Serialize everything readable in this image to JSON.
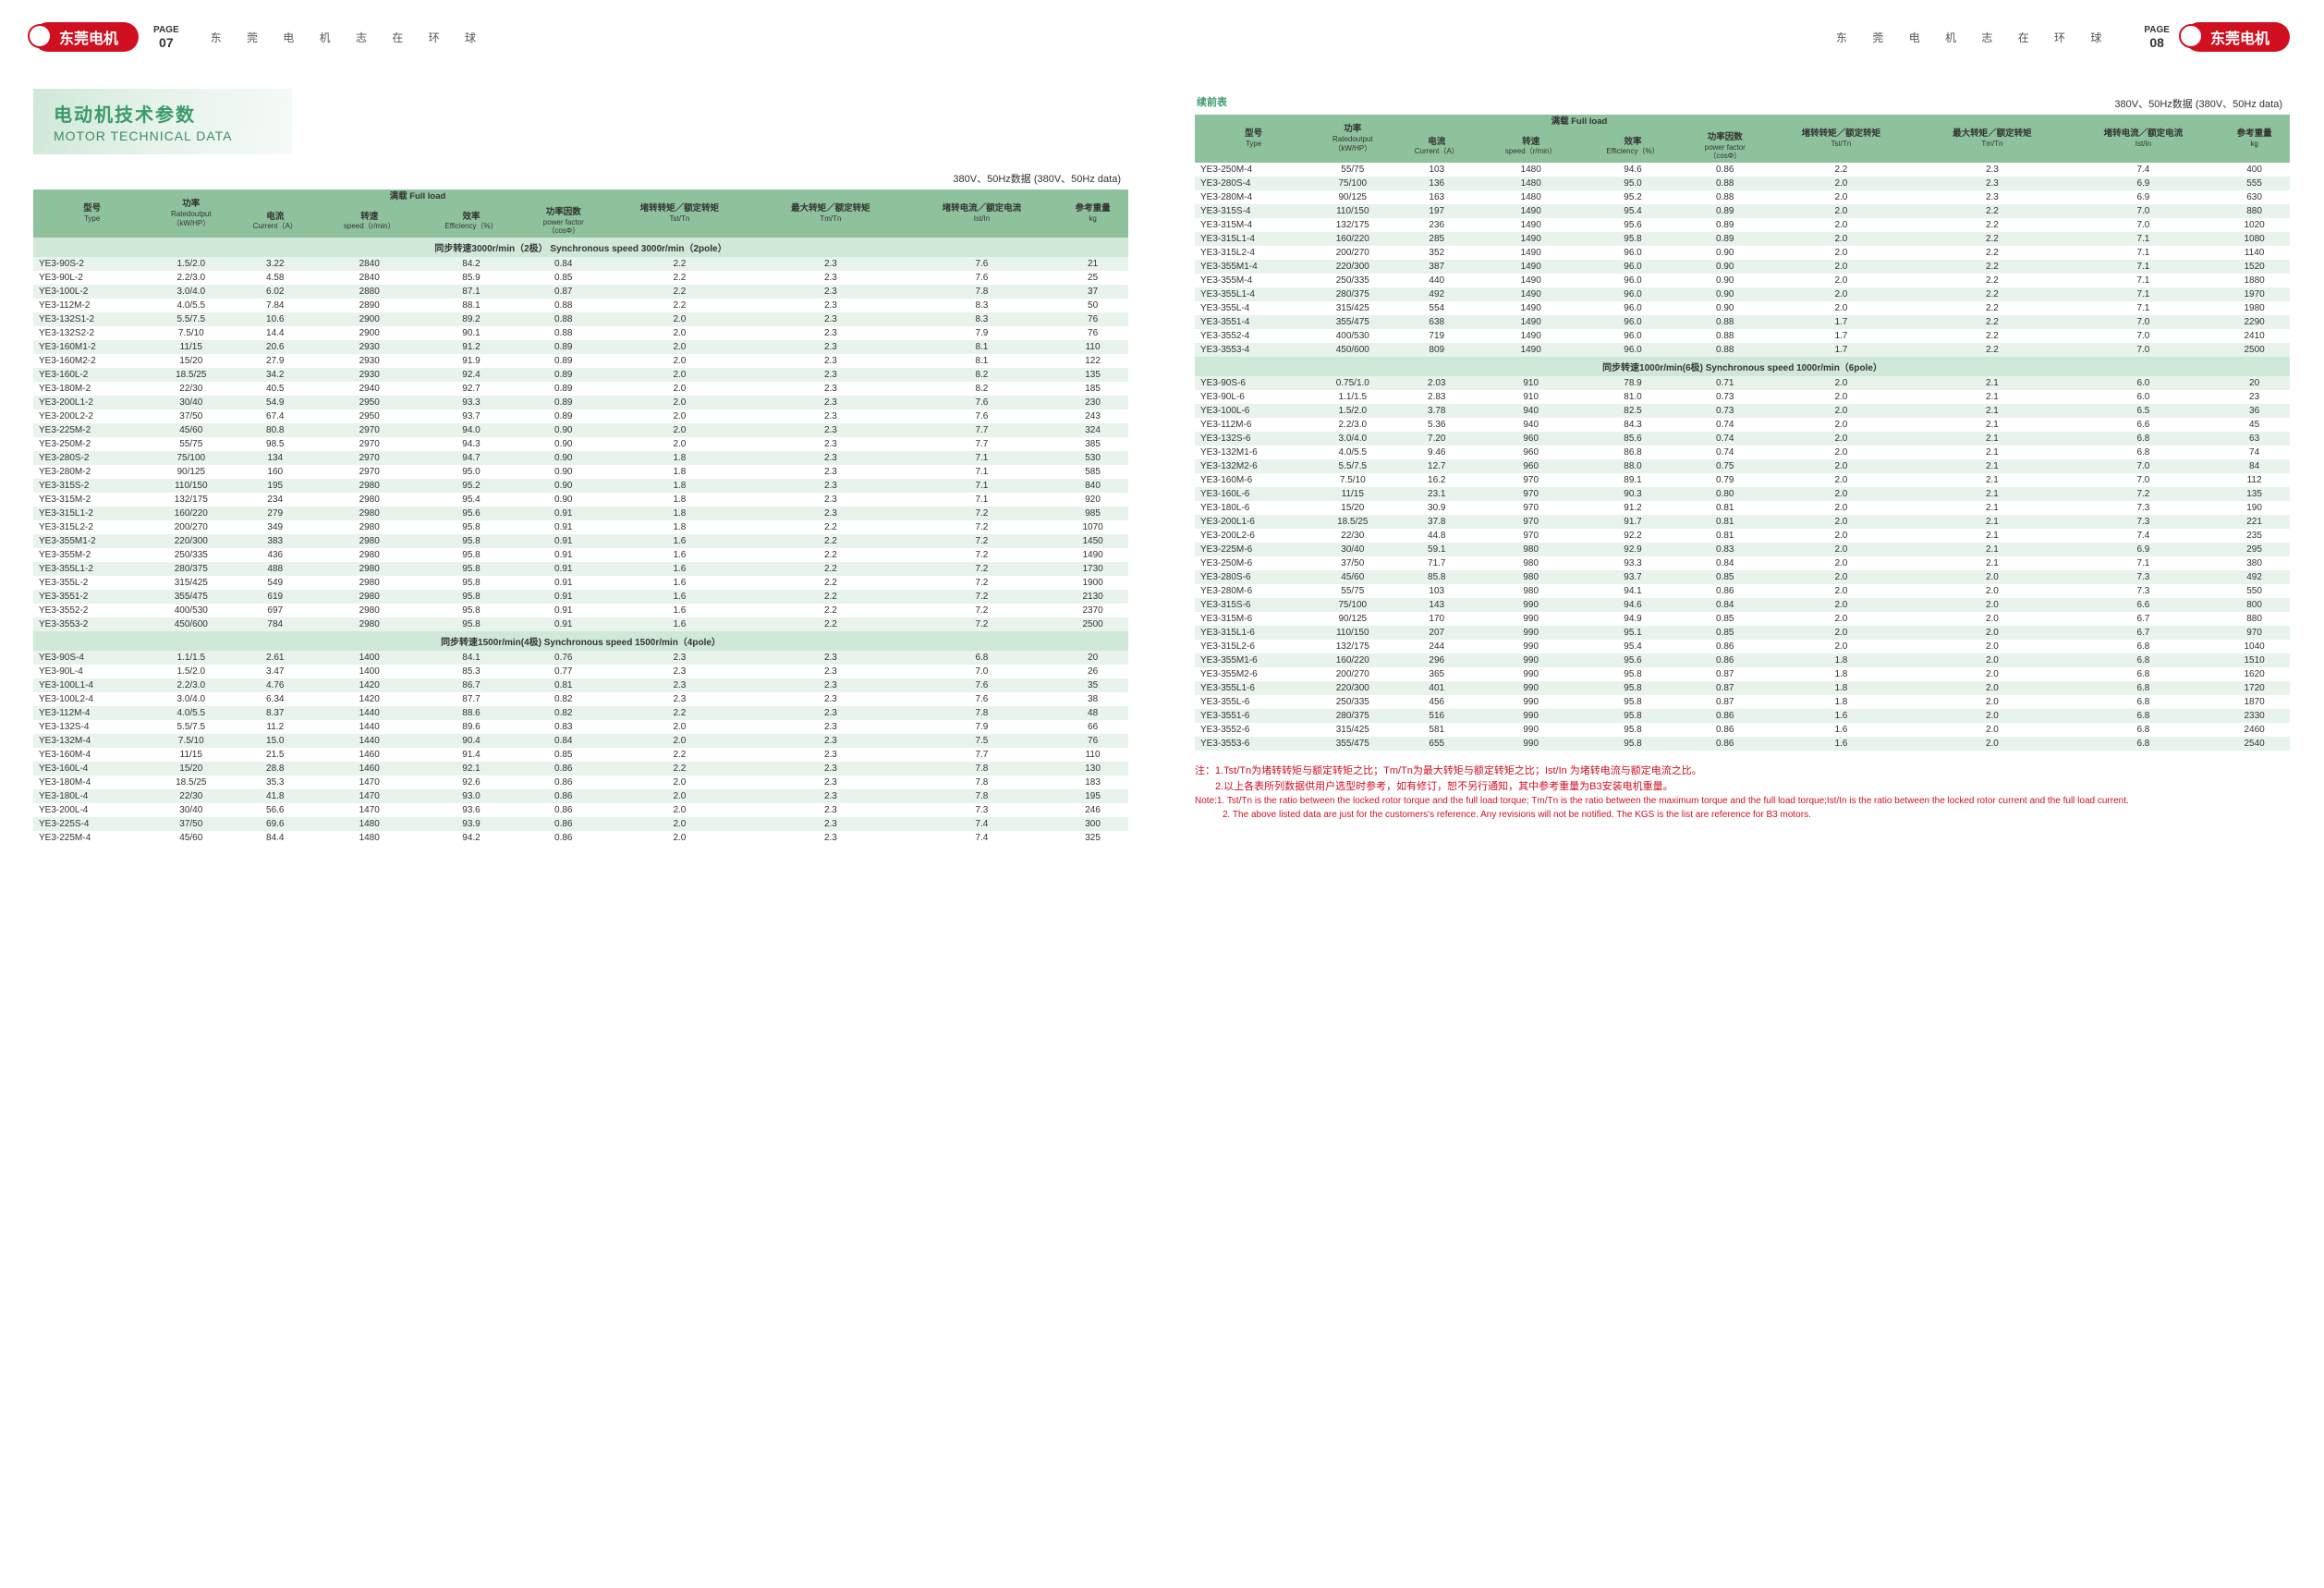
{
  "brand": "东莞电机",
  "page_left_label": "PAGE",
  "page_left_num": "07",
  "page_right_label": "PAGE",
  "page_right_num": "08",
  "slogan": "东 莞 电 机   志 在 环 球",
  "title_cn": "电动机技术参数",
  "title_en": "MOTOR TECHNICAL DATA",
  "data_note": "380V、50Hz数据 (380V、50Hz data)",
  "cont_label": "续前表",
  "headers": {
    "type_cn": "型号",
    "type_en": "Type",
    "power_cn": "功率",
    "power_en": "Ratedoutput",
    "power_unit": "（kW/HP）",
    "full_cn": "满载",
    "full_en": "Full load",
    "curr_cn": "电流",
    "curr_en": "Current（A）",
    "speed_cn": "转速",
    "speed_en": "speed（r/min）",
    "eff_cn": "效率",
    "eff_en": "Efficiency（%）",
    "pf_cn": "功率因数",
    "pf_en": "power factor",
    "pf_unit": "（cosΦ）",
    "tst_cn": "堵转转矩／额定转矩",
    "tst_en": "Tst/Tn",
    "tm_cn": "最大转矩／额定转矩",
    "tm_en": "Tm/Tn",
    "ist_cn": "堵转电流／额定电流",
    "ist_en": "Ist/In",
    "wt_cn": "参考重量",
    "wt_en": "kg"
  },
  "sec_2p": "同步转速3000r/min（2极）  Synchronous speed 3000r/min（2pole）",
  "sec_4p": "同步转速1500r/min(4极)  Synchronous speed 1500r/min（4pole）",
  "sec_6p": "同步转速1000r/min(6极)  Synchronous speed 1000r/min（6pole）",
  "rows_2p": [
    [
      "YE3-90S-2",
      "1.5/2.0",
      "3.22",
      "2840",
      "84.2",
      "0.84",
      "2.2",
      "2.3",
      "7.6",
      "21"
    ],
    [
      "YE3-90L-2",
      "2.2/3.0",
      "4.58",
      "2840",
      "85.9",
      "0.85",
      "2.2",
      "2.3",
      "7.6",
      "25"
    ],
    [
      "YE3-100L-2",
      "3.0/4.0",
      "6.02",
      "2880",
      "87.1",
      "0.87",
      "2.2",
      "2.3",
      "7.8",
      "37"
    ],
    [
      "YE3-112M-2",
      "4.0/5.5",
      "7.84",
      "2890",
      "88.1",
      "0.88",
      "2.2",
      "2.3",
      "8.3",
      "50"
    ],
    [
      "YE3-132S1-2",
      "5.5/7.5",
      "10.6",
      "2900",
      "89.2",
      "0.88",
      "2.0",
      "2.3",
      "8.3",
      "76"
    ],
    [
      "YE3-132S2-2",
      "7.5/10",
      "14.4",
      "2900",
      "90.1",
      "0.88",
      "2.0",
      "2.3",
      "7.9",
      "76"
    ],
    [
      "YE3-160M1-2",
      "11/15",
      "20.6",
      "2930",
      "91.2",
      "0.89",
      "2.0",
      "2.3",
      "8.1",
      "110"
    ],
    [
      "YE3-160M2-2",
      "15/20",
      "27.9",
      "2930",
      "91.9",
      "0.89",
      "2.0",
      "2.3",
      "8.1",
      "122"
    ],
    [
      "YE3-160L-2",
      "18.5/25",
      "34.2",
      "2930",
      "92.4",
      "0.89",
      "2.0",
      "2.3",
      "8.2",
      "135"
    ],
    [
      "YE3-180M-2",
      "22/30",
      "40.5",
      "2940",
      "92.7",
      "0.89",
      "2.0",
      "2.3",
      "8.2",
      "185"
    ],
    [
      "YE3-200L1-2",
      "30/40",
      "54.9",
      "2950",
      "93.3",
      "0.89",
      "2.0",
      "2.3",
      "7.6",
      "230"
    ],
    [
      "YE3-200L2-2",
      "37/50",
      "67.4",
      "2950",
      "93.7",
      "0.89",
      "2.0",
      "2.3",
      "7.6",
      "243"
    ],
    [
      "YE3-225M-2",
      "45/60",
      "80.8",
      "2970",
      "94.0",
      "0.90",
      "2.0",
      "2.3",
      "7.7",
      "324"
    ],
    [
      "YE3-250M-2",
      "55/75",
      "98.5",
      "2970",
      "94.3",
      "0.90",
      "2.0",
      "2.3",
      "7.7",
      "385"
    ],
    [
      "YE3-280S-2",
      "75/100",
      "134",
      "2970",
      "94.7",
      "0.90",
      "1.8",
      "2.3",
      "7.1",
      "530"
    ],
    [
      "YE3-280M-2",
      "90/125",
      "160",
      "2970",
      "95.0",
      "0.90",
      "1.8",
      "2.3",
      "7.1",
      "585"
    ],
    [
      "YE3-315S-2",
      "110/150",
      "195",
      "2980",
      "95.2",
      "0.90",
      "1.8",
      "2.3",
      "7.1",
      "840"
    ],
    [
      "YE3-315M-2",
      "132/175",
      "234",
      "2980",
      "95.4",
      "0.90",
      "1.8",
      "2.3",
      "7.1",
      "920"
    ],
    [
      "YE3-315L1-2",
      "160/220",
      "279",
      "2980",
      "95.6",
      "0.91",
      "1.8",
      "2.3",
      "7.2",
      "985"
    ],
    [
      "YE3-315L2-2",
      "200/270",
      "349",
      "2980",
      "95.8",
      "0.91",
      "1.8",
      "2.2",
      "7.2",
      "1070"
    ],
    [
      "YE3-355M1-2",
      "220/300",
      "383",
      "2980",
      "95.8",
      "0.91",
      "1.6",
      "2.2",
      "7.2",
      "1450"
    ],
    [
      "YE3-355M-2",
      "250/335",
      "436",
      "2980",
      "95.8",
      "0.91",
      "1.6",
      "2.2",
      "7.2",
      "1490"
    ],
    [
      "YE3-355L1-2",
      "280/375",
      "488",
      "2980",
      "95.8",
      "0.91",
      "1.6",
      "2.2",
      "7.2",
      "1730"
    ],
    [
      "YE3-355L-2",
      "315/425",
      "549",
      "2980",
      "95.8",
      "0.91",
      "1.6",
      "2.2",
      "7.2",
      "1900"
    ],
    [
      "YE3-3551-2",
      "355/475",
      "619",
      "2980",
      "95.8",
      "0.91",
      "1.6",
      "2.2",
      "7.2",
      "2130"
    ],
    [
      "YE3-3552-2",
      "400/530",
      "697",
      "2980",
      "95.8",
      "0.91",
      "1.6",
      "2.2",
      "7.2",
      "2370"
    ],
    [
      "YE3-3553-2",
      "450/600",
      "784",
      "2980",
      "95.8",
      "0.91",
      "1.6",
      "2.2",
      "7.2",
      "2500"
    ]
  ],
  "rows_4p_left": [
    [
      "YE3-90S-4",
      "1.1/1.5",
      "2.61",
      "1400",
      "84.1",
      "0.76",
      "2.3",
      "2.3",
      "6.8",
      "20"
    ],
    [
      "YE3-90L-4",
      "1.5/2.0",
      "3.47",
      "1400",
      "85.3",
      "0.77",
      "2.3",
      "2.3",
      "7.0",
      "26"
    ],
    [
      "YE3-100L1-4",
      "2.2/3.0",
      "4.76",
      "1420",
      "86.7",
      "0.81",
      "2.3",
      "2.3",
      "7.6",
      "35"
    ],
    [
      "YE3-100L2-4",
      "3.0/4.0",
      "6.34",
      "1420",
      "87.7",
      "0.82",
      "2.3",
      "2.3",
      "7.6",
      "38"
    ],
    [
      "YE3-112M-4",
      "4.0/5.5",
      "8.37",
      "1440",
      "88.6",
      "0.82",
      "2.2",
      "2.3",
      "7.8",
      "48"
    ],
    [
      "YE3-132S-4",
      "5.5/7.5",
      "11.2",
      "1440",
      "89.6",
      "0.83",
      "2.0",
      "2.3",
      "7.9",
      "66"
    ],
    [
      "YE3-132M-4",
      "7.5/10",
      "15.0",
      "1440",
      "90.4",
      "0.84",
      "2.0",
      "2.3",
      "7.5",
      "76"
    ],
    [
      "YE3-160M-4",
      "11/15",
      "21.5",
      "1460",
      "91.4",
      "0.85",
      "2.2",
      "2.3",
      "7.7",
      "110"
    ],
    [
      "YE3-160L-4",
      "15/20",
      "28.8",
      "1460",
      "92.1",
      "0.86",
      "2.2",
      "2.3",
      "7.8",
      "130"
    ],
    [
      "YE3-180M-4",
      "18.5/25",
      "35.3",
      "1470",
      "92.6",
      "0.86",
      "2.0",
      "2.3",
      "7.8",
      "183"
    ],
    [
      "YE3-180L-4",
      "22/30",
      "41.8",
      "1470",
      "93.0",
      "0.86",
      "2.0",
      "2.3",
      "7.8",
      "195"
    ],
    [
      "YE3-200L-4",
      "30/40",
      "56.6",
      "1470",
      "93.6",
      "0.86",
      "2.0",
      "2.3",
      "7.3",
      "246"
    ],
    [
      "YE3-225S-4",
      "37/50",
      "69.6",
      "1480",
      "93.9",
      "0.86",
      "2.0",
      "2.3",
      "7.4",
      "300"
    ],
    [
      "YE3-225M-4",
      "45/60",
      "84.4",
      "1480",
      "94.2",
      "0.86",
      "2.0",
      "2.3",
      "7.4",
      "325"
    ]
  ],
  "rows_4p_right": [
    [
      "YE3-250M-4",
      "55/75",
      "103",
      "1480",
      "94.6",
      "0.86",
      "2.2",
      "2.3",
      "7.4",
      "400"
    ],
    [
      "YE3-280S-4",
      "75/100",
      "136",
      "1480",
      "95.0",
      "0.88",
      "2.0",
      "2.3",
      "6.9",
      "555"
    ],
    [
      "YE3-280M-4",
      "90/125",
      "163",
      "1480",
      "95.2",
      "0.88",
      "2.0",
      "2.3",
      "6.9",
      "630"
    ],
    [
      "YE3-315S-4",
      "110/150",
      "197",
      "1490",
      "95.4",
      "0.89",
      "2.0",
      "2.2",
      "7.0",
      "880"
    ],
    [
      "YE3-315M-4",
      "132/175",
      "236",
      "1490",
      "95.6",
      "0.89",
      "2.0",
      "2.2",
      "7.0",
      "1020"
    ],
    [
      "YE3-315L1-4",
      "160/220",
      "285",
      "1490",
      "95.8",
      "0.89",
      "2.0",
      "2.2",
      "7.1",
      "1080"
    ],
    [
      "YE3-315L2-4",
      "200/270",
      "352",
      "1490",
      "96.0",
      "0.90",
      "2.0",
      "2.2",
      "7.1",
      "1140"
    ],
    [
      "YE3-355M1-4",
      "220/300",
      "387",
      "1490",
      "96.0",
      "0.90",
      "2.0",
      "2.2",
      "7.1",
      "1520"
    ],
    [
      "YE3-355M-4",
      "250/335",
      "440",
      "1490",
      "96.0",
      "0.90",
      "2.0",
      "2.2",
      "7.1",
      "1880"
    ],
    [
      "YE3-355L1-4",
      "280/375",
      "492",
      "1490",
      "96.0",
      "0.90",
      "2.0",
      "2.2",
      "7.1",
      "1970"
    ],
    [
      "YE3-355L-4",
      "315/425",
      "554",
      "1490",
      "96.0",
      "0.90",
      "2.0",
      "2.2",
      "7.1",
      "1980"
    ],
    [
      "YE3-3551-4",
      "355/475",
      "638",
      "1490",
      "96.0",
      "0.88",
      "1.7",
      "2.2",
      "7.0",
      "2290"
    ],
    [
      "YE3-3552-4",
      "400/530",
      "719",
      "1490",
      "96.0",
      "0.88",
      "1.7",
      "2.2",
      "7.0",
      "2410"
    ],
    [
      "YE3-3553-4",
      "450/600",
      "809",
      "1490",
      "96.0",
      "0.88",
      "1.7",
      "2.2",
      "7.0",
      "2500"
    ]
  ],
  "rows_6p": [
    [
      "YE3-90S-6",
      "0.75/1.0",
      "2.03",
      "910",
      "78.9",
      "0.71",
      "2.0",
      "2.1",
      "6.0",
      "20"
    ],
    [
      "YE3-90L-6",
      "1.1/1.5",
      "2.83",
      "910",
      "81.0",
      "0.73",
      "2.0",
      "2.1",
      "6.0",
      "23"
    ],
    [
      "YE3-100L-6",
      "1.5/2.0",
      "3.78",
      "940",
      "82.5",
      "0.73",
      "2.0",
      "2.1",
      "6.5",
      "36"
    ],
    [
      "YE3-112M-6",
      "2.2/3.0",
      "5.36",
      "940",
      "84.3",
      "0.74",
      "2.0",
      "2.1",
      "6.6",
      "45"
    ],
    [
      "YE3-132S-6",
      "3.0/4.0",
      "7.20",
      "960",
      "85.6",
      "0.74",
      "2.0",
      "2.1",
      "6.8",
      "63"
    ],
    [
      "YE3-132M1-6",
      "4.0/5.5",
      "9.46",
      "960",
      "86.8",
      "0.74",
      "2.0",
      "2.1",
      "6.8",
      "74"
    ],
    [
      "YE3-132M2-6",
      "5.5/7.5",
      "12.7",
      "960",
      "88.0",
      "0.75",
      "2.0",
      "2.1",
      "7.0",
      "84"
    ],
    [
      "YE3-160M-6",
      "7.5/10",
      "16.2",
      "970",
      "89.1",
      "0.79",
      "2.0",
      "2.1",
      "7.0",
      "112"
    ],
    [
      "YE3-160L-6",
      "11/15",
      "23.1",
      "970",
      "90.3",
      "0.80",
      "2.0",
      "2.1",
      "7.2",
      "135"
    ],
    [
      "YE3-180L-6",
      "15/20",
      "30.9",
      "970",
      "91.2",
      "0.81",
      "2.0",
      "2.1",
      "7.3",
      "190"
    ],
    [
      "YE3-200L1-6",
      "18.5/25",
      "37.8",
      "970",
      "91.7",
      "0.81",
      "2.0",
      "2.1",
      "7.3",
      "221"
    ],
    [
      "YE3-200L2-6",
      "22/30",
      "44.8",
      "970",
      "92.2",
      "0.81",
      "2.0",
      "2.1",
      "7.4",
      "235"
    ],
    [
      "YE3-225M-6",
      "30/40",
      "59.1",
      "980",
      "92.9",
      "0.83",
      "2.0",
      "2.1",
      "6.9",
      "295"
    ],
    [
      "YE3-250M-6",
      "37/50",
      "71.7",
      "980",
      "93.3",
      "0.84",
      "2.0",
      "2.1",
      "7.1",
      "380"
    ],
    [
      "YE3-280S-6",
      "45/60",
      "85.8",
      "980",
      "93.7",
      "0.85",
      "2.0",
      "2.0",
      "7.3",
      "492"
    ],
    [
      "YE3-280M-6",
      "55/75",
      "103",
      "980",
      "94.1",
      "0.86",
      "2.0",
      "2.0",
      "7.3",
      "550"
    ],
    [
      "YE3-315S-6",
      "75/100",
      "143",
      "990",
      "94.6",
      "0.84",
      "2.0",
      "2.0",
      "6.6",
      "800"
    ],
    [
      "YE3-315M-6",
      "90/125",
      "170",
      "990",
      "94.9",
      "0.85",
      "2.0",
      "2.0",
      "6.7",
      "880"
    ],
    [
      "YE3-315L1-6",
      "110/150",
      "207",
      "990",
      "95.1",
      "0.85",
      "2.0",
      "2.0",
      "6.7",
      "970"
    ],
    [
      "YE3-315L2-6",
      "132/175",
      "244",
      "990",
      "95.4",
      "0.86",
      "2.0",
      "2.0",
      "6.8",
      "1040"
    ],
    [
      "YE3-355M1-6",
      "160/220",
      "296",
      "990",
      "95.6",
      "0.86",
      "1.8",
      "2.0",
      "6.8",
      "1510"
    ],
    [
      "YE3-355M2-6",
      "200/270",
      "365",
      "990",
      "95.8",
      "0.87",
      "1.8",
      "2.0",
      "6.8",
      "1620"
    ],
    [
      "YE3-355L1-6",
      "220/300",
      "401",
      "990",
      "95.8",
      "0.87",
      "1.8",
      "2.0",
      "6.8",
      "1720"
    ],
    [
      "YE3-355L-6",
      "250/335",
      "456",
      "990",
      "95.8",
      "0.87",
      "1.8",
      "2.0",
      "6.8",
      "1870"
    ],
    [
      "YE3-3551-6",
      "280/375",
      "516",
      "990",
      "95.8",
      "0.86",
      "1.6",
      "2.0",
      "6.8",
      "2330"
    ],
    [
      "YE3-3552-6",
      "315/425",
      "581",
      "990",
      "95.8",
      "0.86",
      "1.6",
      "2.0",
      "6.8",
      "2460"
    ],
    [
      "YE3-3553-6",
      "355/475",
      "655",
      "990",
      "95.8",
      "0.86",
      "1.6",
      "2.0",
      "6.8",
      "2540"
    ]
  ],
  "notes_zh1": "注：1.Tst/Tn为堵转转矩与额定转矩之比；Tm/Tn为最大转矩与额定转矩之比；Ist/In 为堵转电流与额定电流之比。",
  "notes_zh2": "　　2.以上各表所列数据供用户选型时参考，如有修订，恕不另行通知，其中参考重量为B3安装电机重量。",
  "notes_en1": "Note:1. Tst/Tn is the ratio between the locked rotor torque and the full load torque; Tm/Tn is the ratio between the maximum torque  and the full load torque;Ist/In  is the ratio between the locked rotor current and the full load current.",
  "notes_en2": "　　　2. The above listed data are just for the customers's reference. Any revisions will not be notified. The KGS is the list are reference  for B3 motors.",
  "style": {
    "header_bg": "#8ec29c",
    "row_alt": "#e8f3ec",
    "section_bg": "#cfe8d8",
    "accent": "#d01020",
    "title_color": "#3a9b6a",
    "font_size": 10
  }
}
